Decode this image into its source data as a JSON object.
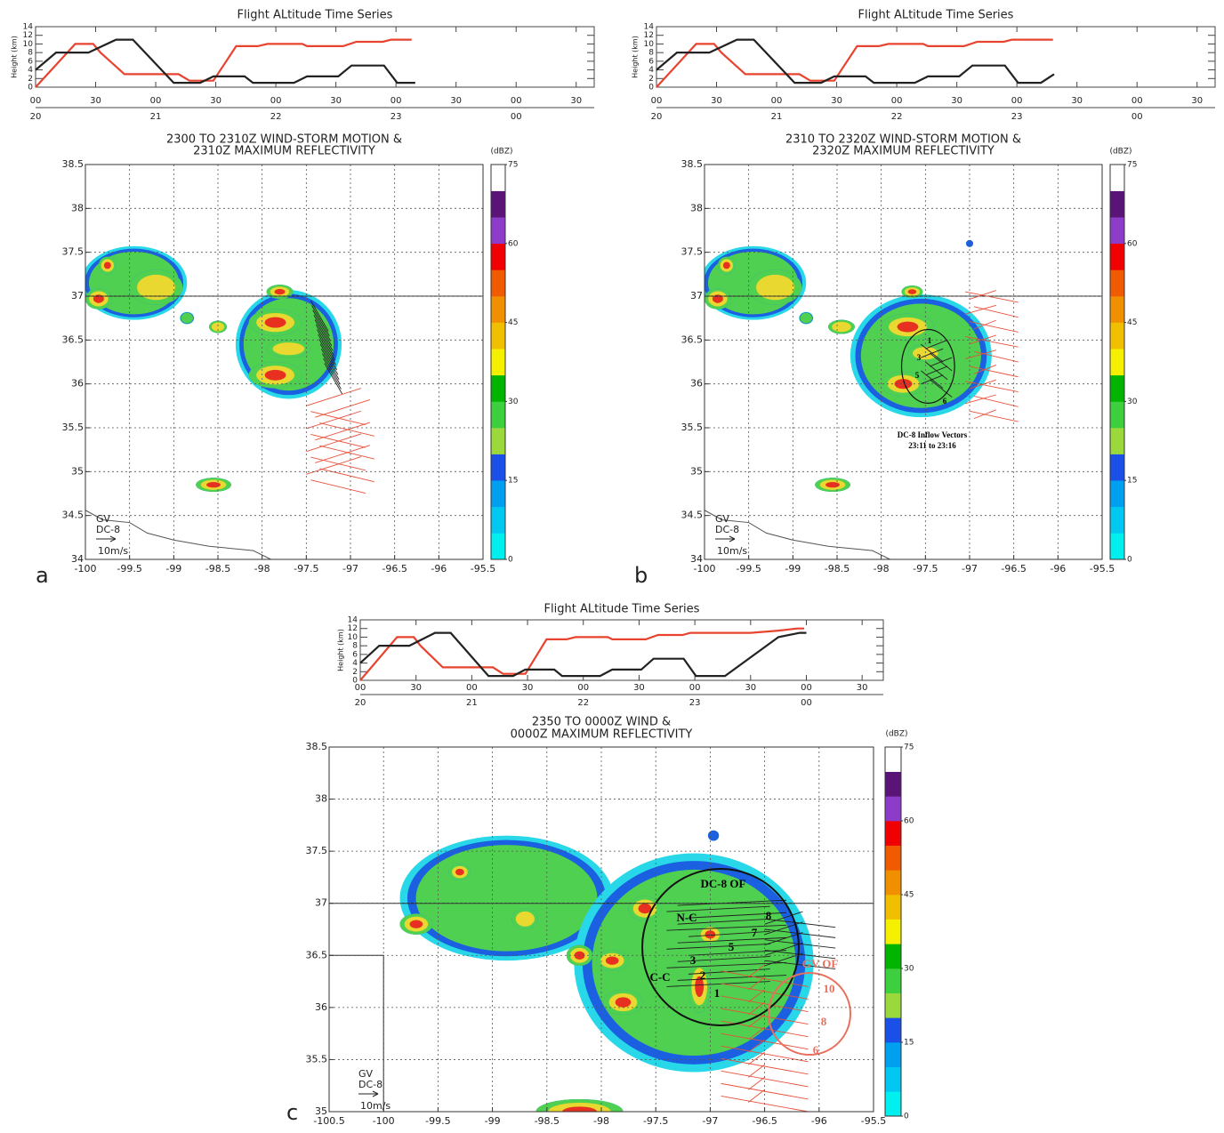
{
  "chart_data": [
    {
      "type": "line",
      "title": "Flight ALtitude Time Series",
      "y_label": "Height (km)",
      "xlim": [
        20,
        24.65
      ],
      "ylim": [
        0,
        14
      ],
      "yticks": [
        0,
        2,
        4,
        6,
        8,
        10,
        12,
        14
      ],
      "xticks": [
        {
          "value": 20,
          "label": "00"
        },
        {
          "value": 20.5,
          "label": "30"
        },
        {
          "value": 21,
          "label": "00"
        },
        {
          "value": 21.5,
          "label": "30"
        },
        {
          "value": 22,
          "label": "00"
        },
        {
          "value": 22.5,
          "label": "30"
        },
        {
          "value": 23,
          "label": "00"
        },
        {
          "value": 23.5,
          "label": "30"
        },
        {
          "value": 24,
          "label": "00"
        },
        {
          "value": 24.5,
          "label": "30"
        }
      ],
      "hour_ticks": [
        {
          "value": 20,
          "label": "20"
        },
        {
          "value": 21,
          "label": "21"
        },
        {
          "value": 22,
          "label": "22"
        },
        {
          "value": 23,
          "label": "23"
        },
        {
          "value": 24,
          "label": "00"
        }
      ],
      "series": [
        {
          "color": "#e8432e",
          "x": [
            20,
            20.33,
            20.48,
            20.54,
            20.74,
            21.19,
            21.28,
            21.48,
            21.67,
            21.85,
            21.93,
            22.22,
            22.26,
            22.56,
            22.67,
            22.89,
            22.96,
            23.13
          ],
          "values": [
            0,
            10,
            10,
            8,
            3,
            3,
            1.5,
            1.5,
            9.5,
            9.5,
            10,
            10,
            9.5,
            9.5,
            10.5,
            10.5,
            11,
            11
          ]
        },
        {
          "color": "#222222",
          "x": [
            20,
            20.17,
            20.44,
            20.67,
            20.81,
            21.15,
            21.37,
            21.48,
            21.74,
            21.81,
            22.15,
            22.26,
            22.52,
            22.63,
            22.9,
            23.01,
            23.16
          ],
          "values": [
            4,
            8,
            8,
            11,
            11,
            1,
            1,
            2.5,
            2.5,
            1,
            1,
            2.5,
            2.5,
            5,
            5,
            1,
            1
          ]
        }
      ]
    },
    {
      "type": "map",
      "title": [
        "2300 TO 2310Z WIND-STORM MOTION &",
        "2310Z MAXIMUM REFLECTIVITY"
      ],
      "xlim": [
        -100,
        -95.5
      ],
      "ylim": [
        34,
        38.5
      ],
      "xticks": [
        -100,
        -99.5,
        -99,
        -98.5,
        -98,
        -97.5,
        -97,
        -96.5,
        -96,
        -95.5
      ],
      "yticks": [
        34,
        34.5,
        35,
        35.5,
        36,
        36.5,
        37,
        37.5,
        38,
        38.5
      ],
      "grid": true,
      "colorbar": {
        "label": "(dBZ)",
        "lim": [
          0,
          75
        ],
        "ticks": [
          0,
          15,
          30,
          45,
          60,
          75
        ],
        "colors": [
          "#00f0f0",
          "#00c8f0",
          "#00a0f0",
          "#1a4fe8",
          "#9ad83c",
          "#3ecf3e",
          "#00b400",
          "#f5f000",
          "#f0c000",
          "#f09000",
          "#f05a00",
          "#f00000",
          "#8c3cc8",
          "#5a1478",
          "#ffffff"
        ]
      },
      "legend": [
        {
          "name": "GV",
          "color": "#e8432e"
        },
        {
          "name": "DC-8",
          "color": "#222222"
        }
      ],
      "scale_label": "10m/s",
      "panel_label": "a",
      "annotations": []
    },
    {
      "type": "line",
      "title": "Flight ALtitude Time Series",
      "y_label": "Height (km)",
      "xlim": [
        20,
        24.65
      ],
      "ylim": [
        0,
        14
      ],
      "yticks": [
        0,
        2,
        4,
        6,
        8,
        10,
        12,
        14
      ],
      "xticks": [
        {
          "value": 20,
          "label": "00"
        },
        {
          "value": 20.5,
          "label": "30"
        },
        {
          "value": 21,
          "label": "00"
        },
        {
          "value": 21.5,
          "label": "30"
        },
        {
          "value": 22,
          "label": "00"
        },
        {
          "value": 22.5,
          "label": "30"
        },
        {
          "value": 23,
          "label": "00"
        },
        {
          "value": 23.5,
          "label": "30"
        },
        {
          "value": 24,
          "label": "00"
        },
        {
          "value": 24.5,
          "label": "30"
        }
      ],
      "hour_ticks": [
        {
          "value": 20,
          "label": "20"
        },
        {
          "value": 21,
          "label": "21"
        },
        {
          "value": 22,
          "label": "22"
        },
        {
          "value": 23,
          "label": "23"
        },
        {
          "value": 24,
          "label": "00"
        }
      ],
      "series": [
        {
          "color": "#e8432e",
          "x": [
            20,
            20.33,
            20.48,
            20.54,
            20.74,
            21.19,
            21.28,
            21.48,
            21.67,
            21.85,
            21.93,
            22.22,
            22.26,
            22.56,
            22.67,
            22.89,
            22.96,
            23.3
          ],
          "values": [
            0,
            10,
            10,
            8,
            3,
            3,
            1.5,
            1.5,
            9.5,
            9.5,
            10,
            10,
            9.5,
            9.5,
            10.5,
            10.5,
            11,
            11
          ]
        },
        {
          "color": "#222222",
          "x": [
            20,
            20.17,
            20.44,
            20.67,
            20.81,
            21.15,
            21.37,
            21.48,
            21.74,
            21.81,
            22.15,
            22.26,
            22.52,
            22.63,
            22.9,
            23.01,
            23.2,
            23.31
          ],
          "values": [
            4,
            8,
            8,
            11,
            11,
            1,
            1,
            2.5,
            2.5,
            1,
            1,
            2.5,
            2.5,
            5,
            5,
            1,
            1,
            3
          ]
        }
      ]
    },
    {
      "type": "map",
      "title": [
        "2310 TO 2320Z WIND-STORM MOTION &",
        "2320Z MAXIMUM REFLECTIVITY"
      ],
      "xlim": [
        -100,
        -95.5
      ],
      "ylim": [
        34,
        38.5
      ],
      "xticks": [
        -100,
        -99.5,
        -99,
        -98.5,
        -98,
        -97.5,
        -97,
        -96.5,
        -96,
        -95.5
      ],
      "yticks": [
        34,
        34.5,
        35,
        35.5,
        36,
        36.5,
        37,
        37.5,
        38,
        38.5
      ],
      "grid": true,
      "colorbar": {
        "label": "(dBZ)",
        "lim": [
          0,
          75
        ],
        "ticks": [
          0,
          15,
          30,
          45,
          60,
          75
        ],
        "colors": [
          "#00f0f0",
          "#00c8f0",
          "#00a0f0",
          "#1a4fe8",
          "#9ad83c",
          "#3ecf3e",
          "#00b400",
          "#f5f000",
          "#f0c000",
          "#f09000",
          "#f05a00",
          "#f00000",
          "#8c3cc8",
          "#5a1478",
          "#ffffff"
        ]
      },
      "legend": [
        {
          "name": "GV",
          "color": "#e8432e"
        },
        {
          "name": "DC-8",
          "color": "#222222"
        }
      ],
      "scale_label": "10m/s",
      "panel_label": "b",
      "annotations": [
        {
          "text": "1",
          "color": "#000000"
        },
        {
          "text": "3",
          "color": "#000000"
        },
        {
          "text": "5",
          "color": "#000000"
        },
        {
          "text": "6",
          "color": "#000000"
        },
        {
          "text": "DC-8 Inflow Vectors",
          "color": "#000000"
        },
        {
          "text": "23:11 to 23:16",
          "color": "#000000"
        }
      ]
    },
    {
      "type": "line",
      "title": "Flight ALtitude Time Series",
      "y_label": "Height (km)",
      "xlim": [
        20,
        24.69
      ],
      "ylim": [
        0,
        14
      ],
      "yticks": [
        0,
        2,
        4,
        6,
        8,
        10,
        12,
        14
      ],
      "xticks": [
        {
          "value": 20,
          "label": "00"
        },
        {
          "value": 20.5,
          "label": "30"
        },
        {
          "value": 21,
          "label": "00"
        },
        {
          "value": 21.5,
          "label": "30"
        },
        {
          "value": 22,
          "label": "00"
        },
        {
          "value": 22.5,
          "label": "30"
        },
        {
          "value": 23,
          "label": "00"
        },
        {
          "value": 23.5,
          "label": "30"
        },
        {
          "value": 24,
          "label": "00"
        },
        {
          "value": 24.5,
          "label": "30"
        }
      ],
      "hour_ticks": [
        {
          "value": 20,
          "label": "20"
        },
        {
          "value": 21,
          "label": "21"
        },
        {
          "value": 22,
          "label": "22"
        },
        {
          "value": 23,
          "label": "23"
        },
        {
          "value": 24,
          "label": "00"
        }
      ],
      "series": [
        {
          "color": "#e8432e",
          "x": [
            20,
            20.33,
            20.48,
            20.54,
            20.74,
            21.19,
            21.28,
            21.48,
            21.67,
            21.85,
            21.93,
            22.22,
            22.26,
            22.56,
            22.67,
            22.89,
            22.96,
            23.5,
            23.75,
            23.92,
            23.98
          ],
          "values": [
            0,
            10,
            10,
            8,
            3,
            3,
            1.5,
            1.5,
            9.5,
            9.5,
            10,
            10,
            9.5,
            9.5,
            10.5,
            10.5,
            11,
            11,
            11.5,
            12,
            12
          ]
        },
        {
          "color": "#222222",
          "x": [
            20,
            20.17,
            20.44,
            20.67,
            20.81,
            21.15,
            21.37,
            21.48,
            21.74,
            21.81,
            22.15,
            22.26,
            22.52,
            22.63,
            22.9,
            23.01,
            23.27,
            23.75,
            23.94,
            24.0
          ],
          "values": [
            4,
            8,
            8,
            11,
            11,
            1,
            1,
            2.5,
            2.5,
            1,
            1,
            2.5,
            2.5,
            5,
            5,
            1,
            1,
            10,
            11,
            11
          ]
        }
      ]
    },
    {
      "type": "map",
      "title": [
        "2350 TO 0000Z WIND &",
        "0000Z MAXIMUM REFLECTIVITY"
      ],
      "xlim": [
        -100.5,
        -95.5
      ],
      "ylim": [
        35,
        38.5
      ],
      "xticks": [
        -100.5,
        -100,
        -99.5,
        -99,
        -98.5,
        -98,
        -97.5,
        -97,
        -96.5,
        -96,
        -95.5
      ],
      "yticks": [
        35,
        35.5,
        36,
        36.5,
        37,
        37.5,
        38,
        38.5
      ],
      "grid": true,
      "colorbar": {
        "label": "(dBZ)",
        "lim": [
          0,
          75
        ],
        "ticks": [
          0,
          15,
          30,
          45,
          60,
          75
        ],
        "colors": [
          "#00f0f0",
          "#00c8f0",
          "#00a0f0",
          "#1a4fe8",
          "#9ad83c",
          "#3ecf3e",
          "#00b400",
          "#f5f000",
          "#f0c000",
          "#f09000",
          "#f05a00",
          "#f00000",
          "#8c3cc8",
          "#5a1478",
          "#ffffff"
        ]
      },
      "legend": [
        {
          "name": "GV",
          "color": "#e8432e"
        },
        {
          "name": "DC-8",
          "color": "#222222"
        }
      ],
      "scale_label": "10m/s",
      "panel_label": "c",
      "annotations": [
        {
          "text": "DC-8 OF",
          "color": "#000000"
        },
        {
          "text": "N-C",
          "color": "#000000"
        },
        {
          "text": "C-C",
          "color": "#000000"
        },
        {
          "text": "8",
          "color": "#000000"
        },
        {
          "text": "7",
          "color": "#000000"
        },
        {
          "text": "5",
          "color": "#000000"
        },
        {
          "text": "3",
          "color": "#000000"
        },
        {
          "text": "2",
          "color": "#000000"
        },
        {
          "text": "1",
          "color": "#000000"
        },
        {
          "text": "GV OF",
          "color": "#e8705e"
        },
        {
          "text": "10",
          "color": "#e8705e"
        },
        {
          "text": "8",
          "color": "#e8705e"
        },
        {
          "text": "6",
          "color": "#e8705e"
        }
      ]
    }
  ]
}
